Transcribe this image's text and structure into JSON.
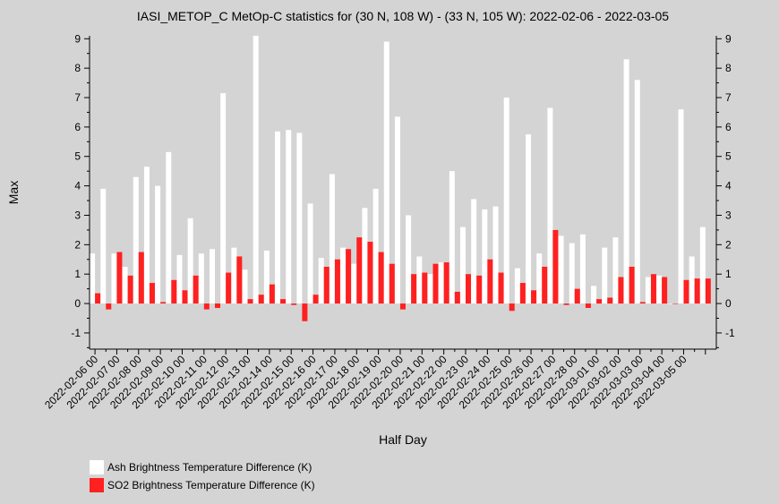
{
  "chart_data": {
    "type": "bar",
    "title": "IASI_METOP_C MetOp-C statistics for (30 N, 108 W) - (33 N, 105 W): 2022-02-06 - 2022-03-05",
    "xlabel": "Half Day",
    "ylabel": "Max",
    "ylim": [
      -1.55,
      9.1
    ],
    "yticks": [
      -1,
      0,
      1,
      2,
      3,
      4,
      5,
      6,
      7,
      8,
      9
    ],
    "legend_position": "bottom-left",
    "x_tick_labels": [
      "2022-02-06 00",
      "2022-02-07 00",
      "2022-02-08 00",
      "2022-02-09 00",
      "2022-02-10 00",
      "2022-02-11 00",
      "2022-02-12 00",
      "2022-02-13 00",
      "2022-02-14 00",
      "2022-02-15 00",
      "2022-02-16 00",
      "2022-02-17 00",
      "2022-02-18 00",
      "2022-02-19 00",
      "2022-02-20 00",
      "2022-02-21 00",
      "2022-02-22 00",
      "2022-02-23 00",
      "2022-02-24 00",
      "2022-02-25 00",
      "2022-02-26 00",
      "2022-02-27 00",
      "2022-02-28 00",
      "2022-03-01 00",
      "2022-03-02 00",
      "2022-03-03 00",
      "2022-03-04 00",
      "2022-03-05 00"
    ],
    "series": [
      {
        "name": "Ash Brightness Temperature Difference (K)",
        "color": "#ffffff",
        "values": [
          1.7,
          3.9,
          1.7,
          1.25,
          4.3,
          4.65,
          4.0,
          5.15,
          1.65,
          2.9,
          1.7,
          1.85,
          7.15,
          1.9,
          1.15,
          9.1,
          1.8,
          5.85,
          5.9,
          5.8,
          3.4,
          1.55,
          4.4,
          1.9,
          1.35,
          3.25,
          3.9,
          8.9,
          6.35,
          3.0,
          1.6,
          1.0,
          1.4,
          4.5,
          2.6,
          3.55,
          3.2,
          3.3,
          7.0,
          1.2,
          5.75,
          1.7,
          6.65,
          2.3,
          2.05,
          2.35,
          0.6,
          1.9,
          2.25,
          8.3,
          7.6,
          0.9,
          0.95,
          0.0,
          6.6,
          1.6,
          2.6
        ]
      },
      {
        "name": "SO2 Brightness Temperature Difference (K)",
        "color": "#ff2020",
        "values": [
          0.35,
          -0.2,
          1.75,
          0.95,
          1.75,
          0.7,
          0.05,
          0.8,
          0.45,
          0.95,
          -0.2,
          -0.15,
          1.05,
          1.6,
          0.15,
          0.3,
          0.65,
          0.15,
          -0.05,
          -0.6,
          0.3,
          1.25,
          1.5,
          1.85,
          2.25,
          2.1,
          1.75,
          1.35,
          -0.2,
          1.0,
          1.05,
          1.35,
          1.4,
          0.4,
          1.0,
          0.95,
          1.5,
          1.05,
          -0.25,
          0.7,
          0.45,
          1.25,
          2.5,
          -0.05,
          0.5,
          -0.15,
          0.15,
          0.2,
          0.9,
          1.25,
          0.05,
          1.0,
          0.9,
          0.0,
          0.8,
          0.85,
          0.85
        ]
      }
    ]
  }
}
